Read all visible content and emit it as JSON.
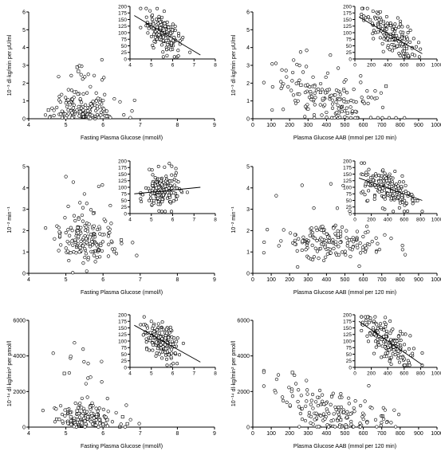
{
  "figure": {
    "panels": [
      {
        "id": "A",
        "xlabel": "Fasting Plasma Glucose (mmol/l)",
        "ylabel": "10⁻³ dl·kg/min per μU/ml",
        "x_ticks": [
          "4",
          "5",
          "6",
          "7",
          "8",
          "9"
        ],
        "y_ticks": [
          "0",
          "1",
          "2",
          "3",
          "4",
          "5",
          "6"
        ],
        "inset": {
          "x_ticks": [
            "4",
            "5",
            "6",
            "7",
            "8"
          ],
          "y_ticks": [
            "0",
            "25",
            "50",
            "75",
            "100",
            "125",
            "150",
            "175",
            "200"
          ]
        }
      },
      {
        "id": "B",
        "xlabel": "Plasma Glucose AAB (mmol per 120 min)",
        "ylabel": "10⁻³ dl·kg/min per μU/ml",
        "x_ticks": [
          "0",
          "100",
          "200",
          "300",
          "400",
          "500",
          "600",
          "700",
          "800",
          "900",
          "1000"
        ],
        "y_ticks": [
          "0",
          "1",
          "2",
          "3",
          "4",
          "5",
          "6"
        ],
        "inset": {
          "x_ticks": [
            "0",
            "200",
            "400",
            "600",
            "800",
            "1000"
          ],
          "y_ticks": [
            "0",
            "25",
            "50",
            "75",
            "100",
            "125",
            "150",
            "175",
            "200"
          ]
        }
      },
      {
        "id": "C",
        "xlabel": "Fasting Plasma Glucose (mmol/l)",
        "ylabel": "10⁻² min⁻¹",
        "x_ticks": [
          "4",
          "5",
          "6",
          "7",
          "8",
          "9"
        ],
        "y_ticks": [
          "0",
          "1",
          "2",
          "3",
          "4",
          "5"
        ],
        "inset": {
          "x_ticks": [
            "4",
            "5",
            "6",
            "7",
            "8"
          ],
          "y_ticks": [
            "0",
            "25",
            "50",
            "75",
            "100",
            "125",
            "150",
            "175",
            "200"
          ]
        }
      },
      {
        "id": "D",
        "xlabel": "Plasma Glucose AAB (mmol per 120 min)",
        "ylabel": "10⁻² min⁻¹",
        "x_ticks": [
          "0",
          "100",
          "200",
          "300",
          "400",
          "500",
          "600",
          "700",
          "800",
          "900",
          "1000"
        ],
        "y_ticks": [
          "0",
          "1",
          "2",
          "3",
          "4",
          "5"
        ],
        "inset": {
          "x_ticks": [
            "0",
            "200",
            "400",
            "600",
            "800",
            "1000"
          ],
          "y_ticks": [
            "0",
            "25",
            "50",
            "75",
            "100",
            "125",
            "150",
            "175",
            "200"
          ]
        }
      },
      {
        "id": "E",
        "xlabel": "Fasting Plasma Glucose (mmol/l)",
        "ylabel": "10⁻¹⁴ dl·kg/min² per pmol/l",
        "x_ticks": [
          "4",
          "5",
          "6",
          "7",
          "8",
          "9"
        ],
        "y_ticks": [
          "0",
          "2000",
          "4000",
          "6000"
        ],
        "inset": {
          "x_ticks": [
            "4",
            "5",
            "6",
            "7",
            "8"
          ],
          "y_ticks": [
            "0",
            "25",
            "50",
            "75",
            "100",
            "125",
            "150",
            "175",
            "200"
          ]
        }
      },
      {
        "id": "F",
        "xlabel": "Plasma Glucose AAB (mmol per 120 min)",
        "ylabel": "10⁻¹⁴ dl·kg/min² per pmol/l",
        "x_ticks": [
          "0",
          "100",
          "200",
          "300",
          "400",
          "500",
          "600",
          "700",
          "800",
          "900",
          "1000"
        ],
        "y_ticks": [
          "0",
          "2000",
          "4000",
          "6000"
        ],
        "inset": {
          "x_ticks": [
            "0",
            "200",
            "400",
            "600",
            "800",
            "1000"
          ],
          "y_ticks": [
            "0",
            "25",
            "50",
            "75",
            "100",
            "125",
            "150",
            "175",
            "200"
          ]
        }
      }
    ]
  },
  "chart_data": [
    {
      "type": "scatter",
      "panel": "A",
      "xlim": [
        4,
        9
      ],
      "ylim": [
        0,
        6
      ],
      "marker": "open-circle",
      "trend": "cluster 5–6 mmol/l, values mostly 0.2–2, max ~6.2",
      "inset": {
        "type": "scatter",
        "xlim": [
          4,
          8
        ],
        "ylim": [
          0,
          200
        ],
        "regression_line": [
          [
            4.2,
            165
          ],
          [
            7.3,
            15
          ]
        ]
      }
    },
    {
      "type": "scatter",
      "panel": "B",
      "xlim": [
        0,
        1000
      ],
      "ylim": [
        0,
        6
      ],
      "marker": "open-circle",
      "trend": "decreasing, values 0.2–4.5 at 200–400 falling to ~0.2 at 800",
      "inset": {
        "type": "scatter",
        "xlim": [
          0,
          1000
        ],
        "ylim": [
          0,
          200
        ],
        "regression_line": [
          [
            50,
            160
          ],
          [
            820,
            20
          ]
        ]
      }
    },
    {
      "type": "scatter",
      "panel": "C",
      "xlim": [
        4,
        9
      ],
      "ylim": [
        0,
        5
      ],
      "marker": "open-circle",
      "trend": "cluster 5–6.3 mmol/l, values mostly 0.8–2.5",
      "inset": {
        "type": "scatter",
        "xlim": [
          4,
          8
        ],
        "ylim": [
          0,
          200
        ],
        "regression_line": [
          [
            4.2,
            75
          ],
          [
            7.3,
            100
          ]
        ]
      }
    },
    {
      "type": "scatter",
      "panel": "D",
      "xlim": [
        0,
        1000
      ],
      "ylim": [
        0,
        5
      ],
      "marker": "open-circle",
      "trend": "values 0.7–2.5 across 100–900, slightly decreasing",
      "inset": {
        "type": "scatter",
        "xlim": [
          0,
          1000
        ],
        "ylim": [
          0,
          200
        ],
        "regression_line": [
          [
            50,
            135
          ],
          [
            820,
            50
          ]
        ]
      }
    },
    {
      "type": "scatter",
      "panel": "E",
      "xlim": [
        4,
        9
      ],
      "ylim": [
        0,
        6000
      ],
      "marker": "open-circle",
      "trend": "cluster 5–6.3 mmol/l, values mostly 0–1500, max ~5800",
      "inset": {
        "type": "scatter",
        "xlim": [
          4,
          8
        ],
        "ylim": [
          0,
          200
        ],
        "regression_line": [
          [
            4.2,
            160
          ],
          [
            7.3,
            20
          ]
        ]
      }
    },
    {
      "type": "scatter",
      "panel": "F",
      "xlim": [
        0,
        1000
      ],
      "ylim": [
        0,
        6000
      ],
      "marker": "open-circle",
      "trend": "strongly decreasing: ~5800 at 50 to ~100 at 800",
      "inset": {
        "type": "scatter",
        "xlim": [
          0,
          1000
        ],
        "ylim": [
          0,
          200
        ],
        "regression_line": [
          [
            50,
            175
          ],
          [
            820,
            10
          ]
        ]
      }
    }
  ]
}
